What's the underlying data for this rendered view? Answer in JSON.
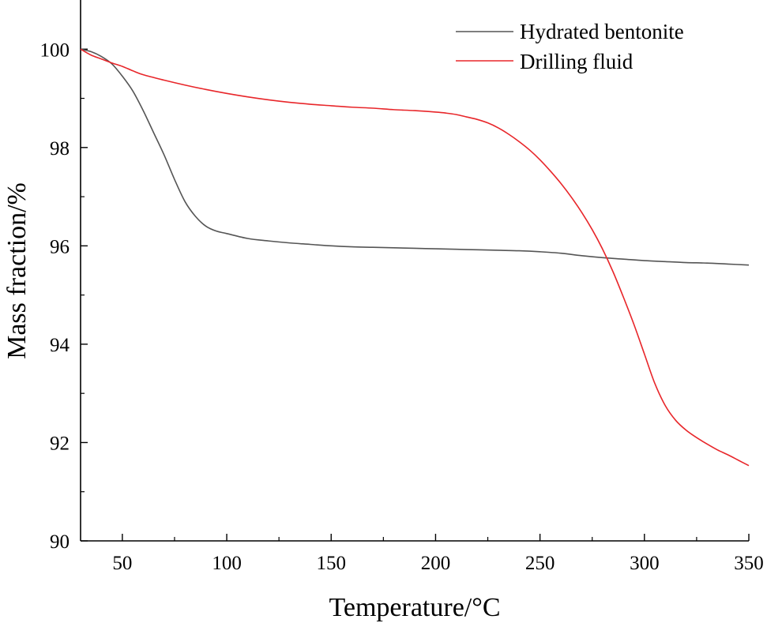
{
  "chart_data": {
    "type": "line",
    "xlabel": "Temperature/°C",
    "ylabel": "Mass fraction/%",
    "xlim": [
      30,
      350
    ],
    "ylim": [
      90,
      101
    ],
    "x_ticks": [
      50,
      100,
      150,
      200,
      250,
      300,
      350
    ],
    "y_ticks": [
      90,
      92,
      94,
      96,
      98,
      100
    ],
    "grid": false,
    "legend_position": "top-right",
    "series": [
      {
        "name": "Hydrated bentonite",
        "color": "#555555",
        "x": [
          30,
          35,
          40,
          45,
          50,
          55,
          60,
          65,
          70,
          75,
          80,
          85,
          90,
          95,
          100,
          110,
          120,
          130,
          140,
          150,
          160,
          170,
          180,
          190,
          200,
          210,
          220,
          230,
          240,
          250,
          260,
          270,
          280,
          290,
          300,
          310,
          320,
          330,
          340,
          350
        ],
        "values": [
          100.0,
          99.95,
          99.85,
          99.7,
          99.45,
          99.15,
          98.75,
          98.3,
          97.85,
          97.35,
          96.9,
          96.6,
          96.4,
          96.3,
          96.25,
          96.15,
          96.1,
          96.06,
          96.03,
          96.0,
          95.98,
          95.97,
          95.96,
          95.95,
          95.94,
          95.93,
          95.92,
          95.91,
          95.9,
          95.88,
          95.85,
          95.8,
          95.76,
          95.73,
          95.7,
          95.68,
          95.66,
          95.65,
          95.63,
          95.61
        ]
      },
      {
        "name": "Drilling fluid",
        "color": "#e8262a",
        "x": [
          30,
          35,
          40,
          45,
          50,
          55,
          60,
          70,
          80,
          90,
          100,
          110,
          120,
          130,
          140,
          150,
          160,
          170,
          180,
          190,
          200,
          205,
          210,
          215,
          220,
          225,
          230,
          235,
          240,
          245,
          250,
          255,
          260,
          265,
          270,
          275,
          280,
          285,
          290,
          295,
          300,
          305,
          310,
          315,
          320,
          325,
          330,
          335,
          340,
          345,
          350
        ],
        "values": [
          100.0,
          99.88,
          99.8,
          99.72,
          99.65,
          99.56,
          99.48,
          99.37,
          99.27,
          99.18,
          99.1,
          99.03,
          98.97,
          98.92,
          98.88,
          98.85,
          98.82,
          98.8,
          98.77,
          98.75,
          98.72,
          98.7,
          98.67,
          98.62,
          98.57,
          98.5,
          98.4,
          98.27,
          98.12,
          97.95,
          97.75,
          97.52,
          97.27,
          96.99,
          96.68,
          96.33,
          95.93,
          95.47,
          94.95,
          94.4,
          93.8,
          93.2,
          92.75,
          92.45,
          92.25,
          92.1,
          91.97,
          91.85,
          91.75,
          91.64,
          91.53
        ]
      }
    ]
  }
}
